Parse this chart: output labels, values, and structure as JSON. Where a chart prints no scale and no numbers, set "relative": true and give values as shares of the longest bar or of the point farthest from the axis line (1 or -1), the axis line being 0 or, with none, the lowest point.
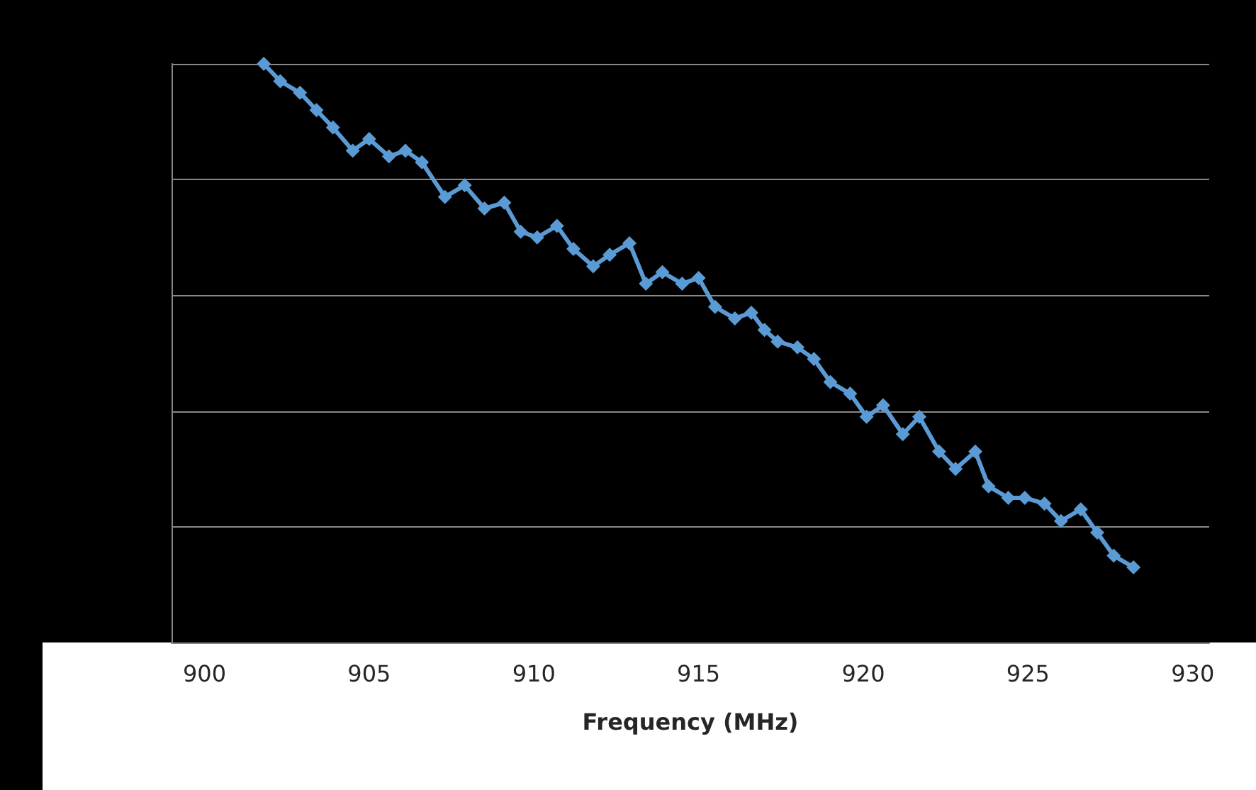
{
  "chart_data": {
    "type": "line",
    "xlabel": "Frequency (MHz)",
    "relative": true,
    "xlim": [
      899,
      930.5
    ],
    "xticks": [
      900,
      905,
      910,
      915,
      920,
      925,
      930
    ],
    "grid": "y",
    "tick_labels": "x",
    "marker": "diamond",
    "line_style": "solid",
    "x": [
      901.8,
      902.3,
      902.9,
      903.4,
      903.9,
      904.5,
      905.0,
      905.6,
      906.1,
      906.6,
      907.3,
      907.9,
      908.5,
      909.1,
      909.6,
      910.1,
      910.7,
      911.2,
      911.8,
      912.3,
      912.9,
      913.4,
      913.9,
      914.5,
      915.0,
      915.5,
      916.1,
      916.6,
      917.0,
      917.4,
      918.0,
      918.5,
      919.0,
      919.6,
      920.1,
      920.6,
      921.2,
      921.7,
      922.3,
      922.8,
      923.4,
      923.8,
      924.4,
      924.9,
      925.5,
      926.0,
      926.6,
      927.1,
      927.6,
      928.2
    ],
    "series": [
      {
        "color": "#5b9bd5",
        "values": [
          1.0,
          0.97,
          0.95,
          0.92,
          0.89,
          0.85,
          0.87,
          0.84,
          0.85,
          0.83,
          0.77,
          0.79,
          0.75,
          0.76,
          0.71,
          0.7,
          0.72,
          0.68,
          0.65,
          0.67,
          0.69,
          0.62,
          0.64,
          0.62,
          0.63,
          0.58,
          0.56,
          0.57,
          0.54,
          0.52,
          0.51,
          0.49,
          0.45,
          0.43,
          0.39,
          0.41,
          0.36,
          0.39,
          0.33,
          0.3,
          0.33,
          0.27,
          0.25,
          0.25,
          0.24,
          0.21,
          0.23,
          0.19,
          0.15,
          0.13
        ]
      }
    ]
  }
}
